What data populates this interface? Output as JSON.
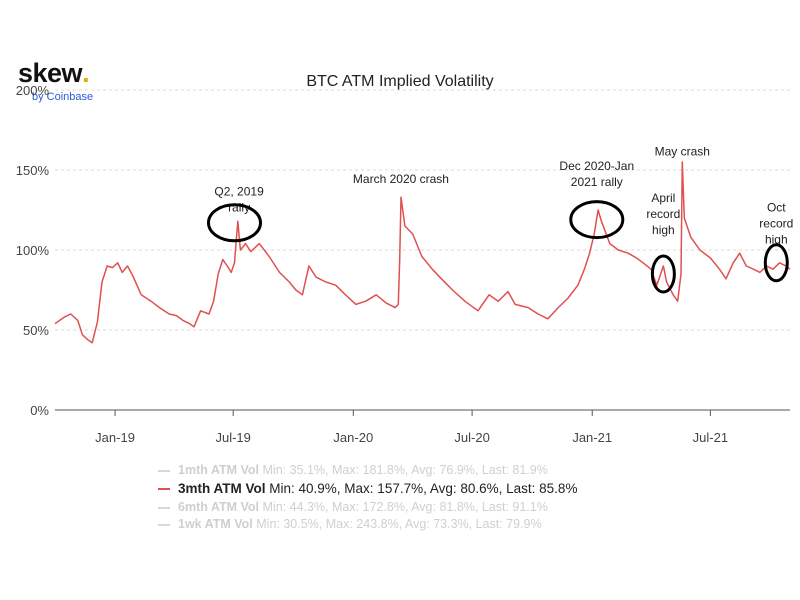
{
  "brand": {
    "name": "skew",
    "dot": ".",
    "sub": "by Coinbase"
  },
  "chart_data": {
    "type": "line",
    "title": "BTC ATM Implied Volatility",
    "xlabel": "",
    "ylabel": "",
    "ylim": [
      0,
      200
    ],
    "yticks": [
      "0%",
      "50%",
      "100%",
      "150%",
      "200%"
    ],
    "xrange": [
      "2018-10-01",
      "2021-10-31"
    ],
    "xticks": [
      {
        "date": "2019-01-01",
        "label": "Jan-19"
      },
      {
        "date": "2019-07-01",
        "label": "Jul-19"
      },
      {
        "date": "2020-01-01",
        "label": "Jan-20"
      },
      {
        "date": "2020-07-01",
        "label": "Jul-20"
      },
      {
        "date": "2021-01-01",
        "label": "Jan-21"
      },
      {
        "date": "2021-07-01",
        "label": "Jul-21"
      }
    ],
    "grid": "horizontal",
    "color": "#e05050",
    "series": [
      {
        "name": "3mth ATM Vol",
        "points": [
          [
            "2018-10-01",
            54
          ],
          [
            "2018-10-15",
            58
          ],
          [
            "2018-10-25",
            60
          ],
          [
            "2018-11-05",
            56
          ],
          [
            "2018-11-12",
            47
          ],
          [
            "2018-11-20",
            44
          ],
          [
            "2018-11-27",
            42
          ],
          [
            "2018-12-05",
            55
          ],
          [
            "2018-12-12",
            80
          ],
          [
            "2018-12-20",
            90
          ],
          [
            "2018-12-28",
            89
          ],
          [
            "2019-01-05",
            92
          ],
          [
            "2019-01-12",
            86
          ],
          [
            "2019-01-20",
            90
          ],
          [
            "2019-01-28",
            84
          ],
          [
            "2019-02-10",
            72
          ],
          [
            "2019-02-25",
            68
          ],
          [
            "2019-03-10",
            64
          ],
          [
            "2019-03-25",
            60
          ],
          [
            "2019-04-05",
            59
          ],
          [
            "2019-04-15",
            56
          ],
          [
            "2019-04-25",
            54
          ],
          [
            "2019-05-02",
            52
          ],
          [
            "2019-05-12",
            62
          ],
          [
            "2019-05-25",
            60
          ],
          [
            "2019-06-01",
            68
          ],
          [
            "2019-06-08",
            85
          ],
          [
            "2019-06-15",
            94
          ],
          [
            "2019-06-22",
            90
          ],
          [
            "2019-06-28",
            86
          ],
          [
            "2019-07-03",
            92
          ],
          [
            "2019-07-08",
            118
          ],
          [
            "2019-07-12",
            100
          ],
          [
            "2019-07-20",
            104
          ],
          [
            "2019-07-28",
            99
          ],
          [
            "2019-08-10",
            104
          ],
          [
            "2019-08-25",
            96
          ],
          [
            "2019-09-10",
            86
          ],
          [
            "2019-09-25",
            80
          ],
          [
            "2019-10-05",
            75
          ],
          [
            "2019-10-15",
            72
          ],
          [
            "2019-10-25",
            90
          ],
          [
            "2019-11-05",
            83
          ],
          [
            "2019-11-20",
            80
          ],
          [
            "2019-12-05",
            78
          ],
          [
            "2019-12-20",
            72
          ],
          [
            "2020-01-05",
            66
          ],
          [
            "2020-01-20",
            68
          ],
          [
            "2020-02-05",
            72
          ],
          [
            "2020-02-20",
            67
          ],
          [
            "2020-03-05",
            64
          ],
          [
            "2020-03-10",
            66
          ],
          [
            "2020-03-12",
            94
          ],
          [
            "2020-03-14",
            133
          ],
          [
            "2020-03-20",
            115
          ],
          [
            "2020-04-01",
            110
          ],
          [
            "2020-04-15",
            96
          ],
          [
            "2020-05-01",
            88
          ],
          [
            "2020-05-15",
            82
          ],
          [
            "2020-06-01",
            75
          ],
          [
            "2020-06-20",
            68
          ],
          [
            "2020-07-10",
            62
          ],
          [
            "2020-07-27",
            72
          ],
          [
            "2020-08-10",
            68
          ],
          [
            "2020-08-25",
            74
          ],
          [
            "2020-09-05",
            66
          ],
          [
            "2020-09-25",
            64
          ],
          [
            "2020-10-10",
            60
          ],
          [
            "2020-10-25",
            57
          ],
          [
            "2020-11-10",
            64
          ],
          [
            "2020-11-25",
            70
          ],
          [
            "2020-12-10",
            78
          ],
          [
            "2020-12-20",
            88
          ],
          [
            "2020-12-28",
            98
          ],
          [
            "2021-01-04",
            110
          ],
          [
            "2021-01-10",
            125
          ],
          [
            "2021-01-15",
            118
          ],
          [
            "2021-01-28",
            104
          ],
          [
            "2021-02-10",
            100
          ],
          [
            "2021-02-25",
            98
          ],
          [
            "2021-03-10",
            95
          ],
          [
            "2021-03-20",
            92
          ],
          [
            "2021-04-01",
            88
          ],
          [
            "2021-04-10",
            78
          ],
          [
            "2021-04-20",
            90
          ],
          [
            "2021-04-25",
            80
          ],
          [
            "2021-05-05",
            72
          ],
          [
            "2021-05-12",
            68
          ],
          [
            "2021-05-17",
            85
          ],
          [
            "2021-05-19",
            155
          ],
          [
            "2021-05-22",
            120
          ],
          [
            "2021-06-01",
            108
          ],
          [
            "2021-06-15",
            100
          ],
          [
            "2021-07-01",
            95
          ],
          [
            "2021-07-15",
            88
          ],
          [
            "2021-07-25",
            82
          ],
          [
            "2021-08-05",
            92
          ],
          [
            "2021-08-15",
            98
          ],
          [
            "2021-08-25",
            90
          ],
          [
            "2021-09-05",
            88
          ],
          [
            "2021-09-15",
            86
          ],
          [
            "2021-09-25",
            90
          ],
          [
            "2021-10-05",
            88
          ],
          [
            "2021-10-15",
            92
          ],
          [
            "2021-10-25",
            90
          ],
          [
            "2021-10-31",
            88
          ]
        ]
      }
    ],
    "annotations": [
      {
        "lines": [
          "Q2, 2019",
          "rally"
        ],
        "date": "2019-07-10",
        "value": 124
      },
      {
        "lines": [
          "March 2020 crash"
        ],
        "date": "2020-03-14",
        "value": 142
      },
      {
        "lines": [
          "Dec 2020-Jan",
          "2021 rally"
        ],
        "date": "2021-01-08",
        "value": 140
      },
      {
        "lines": [
          "April",
          "record",
          "high"
        ],
        "date": "2021-04-20",
        "value": 110
      },
      {
        "lines": [
          "May crash"
        ],
        "date": "2021-05-19",
        "value": 159
      },
      {
        "lines": [
          "Oct",
          "record",
          "high"
        ],
        "date": "2021-10-10",
        "value": 104
      }
    ],
    "circles": [
      {
        "date": "2019-07-03",
        "value": 117
      },
      {
        "date": "2021-01-08",
        "value": 119
      },
      {
        "date": "2021-04-20",
        "value": 85
      },
      {
        "date": "2021-10-10",
        "value": 92
      }
    ]
  },
  "legend": [
    {
      "name": "1mth ATM Vol",
      "stats": "Min: 35.1%, Max: 181.8%, Avg: 76.9%, Last: 81.9%",
      "active": false
    },
    {
      "name": "3mth ATM Vol",
      "stats": "Min: 40.9%, Max: 157.7%, Avg: 80.6%, Last: 85.8%",
      "active": true
    },
    {
      "name": "6mth ATM Vol",
      "stats": "Min: 44.3%, Max: 172.8%, Avg: 81.8%, Last: 91.1%",
      "active": false
    },
    {
      "name": "1wk ATM Vol",
      "stats": "Min: 30.5%, Max: 243.8%, Avg: 73.3%, Last: 79.9%",
      "active": false
    }
  ]
}
